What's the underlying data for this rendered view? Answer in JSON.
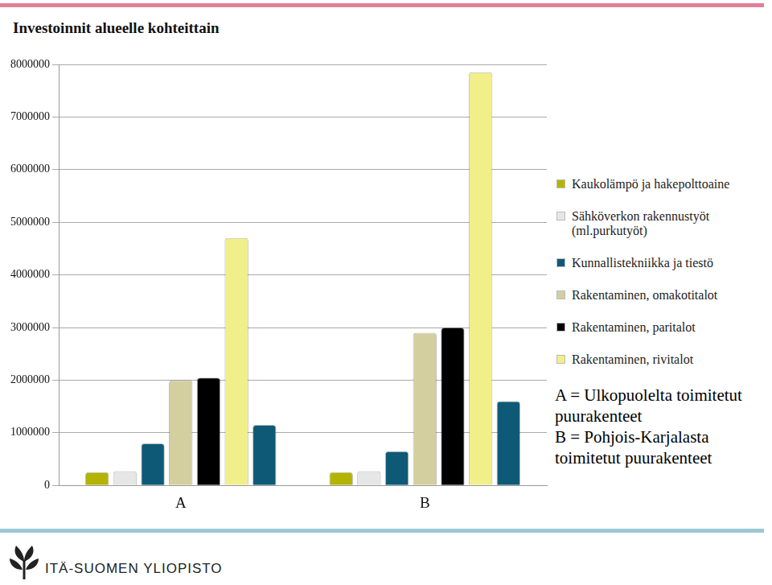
{
  "chart_data": {
    "type": "bar",
    "title": "Investoinnit alueelle kohteittain",
    "categories": [
      "A",
      "B"
    ],
    "series": [
      {
        "name": "Kaukolämpö ja hakepolttoaine",
        "color": "#b3b400",
        "values": [
          250000,
          250000
        ]
      },
      {
        "name": "Sähköverkon rakennustyöt (ml.purkutyöt)",
        "color": "#e6e6e6",
        "values": [
          270000,
          270000
        ]
      },
      {
        "name": "Kunnallistekniikka ja tiestö",
        "color": "#0e5a76",
        "values": [
          800000,
          650000
        ]
      },
      {
        "name": "Rakentaminen, omakotitalot",
        "color": "#d3cf9f",
        "values": [
          2000000,
          2900000
        ]
      },
      {
        "name": "Rakentaminen, paritalot",
        "color": "#000000",
        "values": [
          2050000,
          3000000
        ]
      },
      {
        "name": "Rakentaminen, rivitalot",
        "color": "#f0ef8a",
        "values": [
          4700000,
          7850000
        ]
      },
      {
        "name": null,
        "color": "#0e5a76",
        "values": [
          1150000,
          1600000
        ]
      }
    ],
    "ylim": [
      0,
      8000000
    ],
    "yticks": [
      0,
      1000000,
      2000000,
      3000000,
      4000000,
      5000000,
      6000000,
      7000000,
      8000000
    ],
    "grid": true,
    "legend": "right",
    "annotations": [
      "A = Ulkopuolelta toimitetut puurakenteet",
      "B = Pohjois-Karjalasta toimitetut puurakenteet"
    ],
    "footer": "ITÄ-SUOMEN YLIOPISTO"
  }
}
